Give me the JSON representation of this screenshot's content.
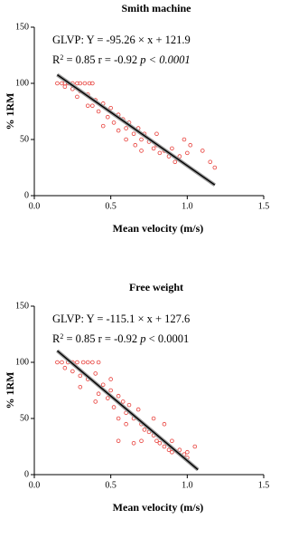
{
  "chart_data": [
    {
      "type": "scatter",
      "title": "Smith machine",
      "xlabel": "Mean velocity (m/s)",
      "ylabel": "% 1RM",
      "annotation": {
        "line1": "GLVP: Y = -95.26 × x + 121.9",
        "line2": [
          {
            "text": "R"
          },
          {
            "text": "2",
            "sup": true
          },
          {
            "text": " = 0.85  r = -0.92 "
          },
          {
            "text": "p < 0.0001",
            "italic": true
          }
        ]
      },
      "color": "#e8413c",
      "x": [
        0.15,
        0.18,
        0.2,
        0.22,
        0.25,
        0.28,
        0.3,
        0.33,
        0.36,
        0.38,
        0.2,
        0.25,
        0.3,
        0.28,
        0.35,
        0.4,
        0.38,
        0.45,
        0.42,
        0.5,
        0.48,
        0.55,
        0.52,
        0.58,
        0.6,
        0.62,
        0.55,
        0.65,
        0.68,
        0.7,
        0.72,
        0.66,
        0.75,
        0.78,
        0.8,
        0.82,
        0.85,
        0.88,
        0.9,
        0.92,
        0.95,
        1.0,
        0.98,
        1.02,
        1.1,
        1.15,
        1.18,
        0.6,
        0.45,
        0.35,
        0.7,
        0.8
      ],
      "values": [
        100,
        100,
        100,
        100,
        100,
        100,
        100,
        100,
        100,
        100,
        97,
        95,
        93,
        88,
        90,
        85,
        80,
        82,
        75,
        78,
        70,
        72,
        65,
        68,
        60,
        65,
        58,
        55,
        60,
        50,
        55,
        45,
        48,
        42,
        45,
        38,
        40,
        35,
        42,
        30,
        35,
        38,
        50,
        45,
        40,
        30,
        25,
        50,
        62,
        80,
        40,
        55
      ],
      "fit_line": {
        "x": [
          0.15,
          1.18
        ],
        "values": [
          107.6,
          9.5
        ]
      },
      "xlim": [
        0,
        1.5
      ],
      "xticks": [
        {
          "value": 0,
          "label": "0.0"
        },
        0.5,
        {
          "value": 1,
          "label": "1.0"
        },
        1.5
      ],
      "ylim": [
        0,
        150
      ],
      "yticks": [
        0,
        50,
        100,
        150
      ]
    },
    {
      "type": "scatter",
      "title": "Free weight",
      "xlabel": "Mean velocity (m/s)",
      "ylabel": "% 1RM",
      "annotation": {
        "line1": "GLVP: Y = -115.1 × x + 127.6",
        "line2": [
          {
            "text": "R"
          },
          {
            "text": "2",
            "sup": true
          },
          {
            "text": " = 0.85  r = -0.92 "
          },
          {
            "text": "p",
            "italic": true
          },
          {
            "text": " < 0.0001"
          }
        ]
      },
      "color": "#e8413c",
      "x": [
        0.15,
        0.18,
        0.22,
        0.25,
        0.28,
        0.32,
        0.35,
        0.38,
        0.42,
        0.2,
        0.25,
        0.3,
        0.35,
        0.4,
        0.45,
        0.42,
        0.5,
        0.48,
        0.55,
        0.52,
        0.58,
        0.6,
        0.62,
        0.55,
        0.65,
        0.68,
        0.7,
        0.72,
        0.6,
        0.75,
        0.78,
        0.8,
        0.82,
        0.85,
        0.88,
        0.9,
        0.95,
        1.0,
        1.05,
        0.98,
        0.7,
        0.65,
        0.55,
        0.78,
        0.85,
        0.4,
        0.3,
        0.9,
        1.0,
        0.5
      ],
      "values": [
        100,
        100,
        100,
        100,
        100,
        100,
        100,
        100,
        100,
        95,
        92,
        88,
        85,
        90,
        80,
        72,
        75,
        68,
        70,
        60,
        65,
        55,
        62,
        50,
        50,
        58,
        45,
        40,
        45,
        38,
        35,
        30,
        28,
        25,
        22,
        20,
        22,
        20,
        25,
        18,
        30,
        28,
        30,
        50,
        45,
        65,
        78,
        30,
        15,
        85
      ],
      "fit_line": {
        "x": [
          0.15,
          1.07
        ],
        "values": [
          110.3,
          4.4
        ]
      },
      "xlim": [
        0,
        1.5
      ],
      "xticks": [
        {
          "value": 0,
          "label": "0.0"
        },
        0.5,
        {
          "value": 1,
          "label": "1.0"
        },
        1.5
      ],
      "ylim": [
        0,
        150
      ],
      "yticks": [
        0,
        50,
        100,
        150
      ]
    }
  ]
}
